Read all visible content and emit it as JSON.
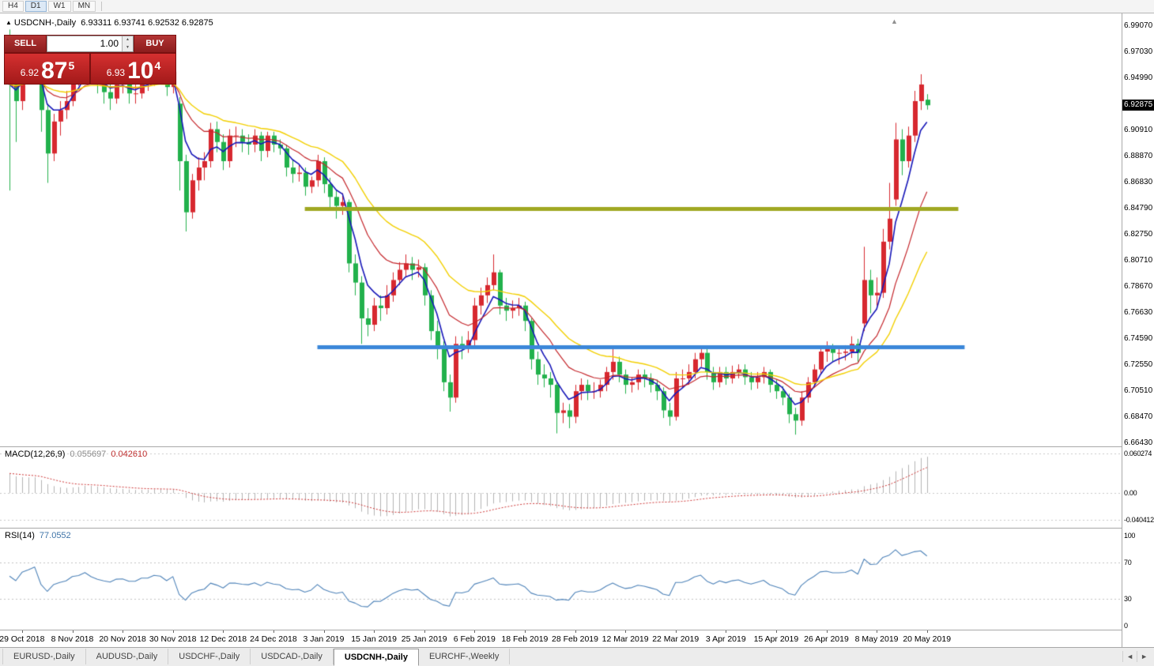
{
  "toolbar": {
    "timeframes": [
      {
        "label": "H4",
        "active": false
      },
      {
        "label": "D1",
        "active": true
      },
      {
        "label": "W1",
        "active": false
      },
      {
        "label": "MN",
        "active": false
      }
    ]
  },
  "chart": {
    "header": {
      "symbol": "USDCNH-,Daily",
      "ohlc": "6.93311 6.93741 6.92532 6.92875"
    }
  },
  "trade_panel": {
    "sell_label": "SELL",
    "buy_label": "BUY",
    "volume": "1.00",
    "sell": {
      "prefix": "6.92",
      "big": "87",
      "sup": "5"
    },
    "buy": {
      "prefix": "6.93",
      "big": "10",
      "sup": "4"
    }
  },
  "price_scale": {
    "labels": [
      "6.99070",
      "6.97030",
      "6.94990",
      "6.92950",
      "6.90910",
      "6.88870",
      "6.86830",
      "6.84790",
      "6.82750",
      "6.80710",
      "6.78670",
      "6.76630",
      "6.74590",
      "6.72550",
      "6.70510",
      "6.68470",
      "6.66430"
    ],
    "current": "6.92875"
  },
  "macd_panel": {
    "name": "MACD(12,26,9)",
    "value_main": "0.055697",
    "value_signal": "0.042610",
    "scale": [
      "0.060274",
      "0.00",
      "-0.040412"
    ]
  },
  "rsi_panel": {
    "name": "RSI(14)",
    "value": "77.0552",
    "scale": [
      "100",
      "70",
      "30",
      "0"
    ],
    "levels": [
      70,
      30
    ]
  },
  "time_axis": {
    "labels": [
      "29 Oct 2018",
      "8 Nov 2018",
      "20 Nov 2018",
      "30 Nov 2018",
      "12 Dec 2018",
      "24 Dec 2018",
      "3 Jan 2019",
      "15 Jan 2019",
      "25 Jan 2019",
      "6 Feb 2019",
      "18 Feb 2019",
      "28 Feb 2019",
      "12 Mar 2019",
      "22 Mar 2019",
      "3 Apr 2019",
      "15 Apr 2019",
      "26 Apr 2019",
      "8 May 2019",
      "20 May 2019"
    ],
    "tick_every": 8,
    "first_label_bar": 2
  },
  "tabs": {
    "items": [
      {
        "label": "EURUSD-,Daily",
        "active": false
      },
      {
        "label": "AUDUSD-,Daily",
        "active": false
      },
      {
        "label": "USDCHF-,Daily",
        "active": false
      },
      {
        "label": "USDCAD-,Daily",
        "active": false
      },
      {
        "label": "USDCNH-,Daily",
        "active": true
      },
      {
        "label": "EURCHF-,Weekly",
        "active": false
      }
    ]
  },
  "icons": {
    "title_marker": "▲",
    "spinner_up": "▲",
    "spinner_down": "▼",
    "tab_prev": "◄",
    "tab_next": "►",
    "shift_marker": "▲"
  },
  "chart_data": {
    "type": "candlestick+indicators",
    "symbol": "USDCNH-",
    "timeframe": "Daily",
    "last_price": 6.92875,
    "colors": {
      "up": "#d7282f",
      "down": "#22b14c",
      "ma_fast": "#1717b8",
      "ma_mid": "#c4262b",
      "ma_slow": "#f2cf00",
      "macd_hist": "#b2b2b2",
      "macd_signal": "#cc3333",
      "rsi": "#4d82b8",
      "hline_upper": "#a0a822",
      "hline_lower": "#3b87d9"
    },
    "ma": [
      {
        "period": 5,
        "color": "#1717b8",
        "width": 1.6
      },
      {
        "period": 13,
        "color": "#c4262b",
        "width": 1.2
      },
      {
        "period": 25,
        "color": "#f2cf00",
        "width": 1.4
      }
    ],
    "hlines": [
      {
        "price": 6.8478,
        "color": "#a0a822",
        "width": 5,
        "from_bar": 47,
        "to_bar": 151
      },
      {
        "price": 6.74,
        "color": "#3b87d9",
        "width": 5,
        "from_bar": 49,
        "to_bar": 152
      }
    ],
    "macd": {
      "fast": 12,
      "slow": 26,
      "signal": 9,
      "init_fast": 6.952,
      "init_slow": 6.92,
      "init_signal": 0.03,
      "current_main": 0.055697,
      "current_signal": 0.04261
    },
    "rsi": {
      "period": 14,
      "current": 77.0552
    },
    "candles": [
      [
        6.968,
        6.988,
        6.862,
        6.945
      ],
      [
        6.945,
        6.958,
        6.9,
        6.932
      ],
      [
        6.932,
        6.962,
        6.925,
        6.957
      ],
      [
        6.957,
        6.972,
        6.95,
        6.966
      ],
      [
        6.966,
        6.98,
        6.958,
        6.977
      ],
      [
        6.977,
        6.979,
        6.908,
        6.925
      ],
      [
        6.925,
        6.93,
        6.868,
        6.891
      ],
      [
        6.891,
        6.922,
        6.885,
        6.916
      ],
      [
        6.916,
        6.932,
        6.905,
        6.925
      ],
      [
        6.925,
        6.94,
        6.918,
        6.932
      ],
      [
        6.932,
        6.956,
        6.928,
        6.951
      ],
      [
        6.951,
        6.962,
        6.944,
        6.956
      ],
      [
        6.956,
        6.974,
        6.95,
        6.97
      ],
      [
        6.97,
        6.977,
        6.948,
        6.955
      ],
      [
        6.955,
        6.96,
        6.938,
        6.945
      ],
      [
        6.945,
        6.952,
        6.93,
        6.939
      ],
      [
        6.939,
        6.946,
        6.925,
        6.934
      ],
      [
        6.934,
        6.95,
        6.93,
        6.945
      ],
      [
        6.945,
        6.953,
        6.938,
        6.946
      ],
      [
        6.946,
        6.95,
        6.93,
        6.938
      ],
      [
        6.938,
        6.945,
        6.93,
        6.938
      ],
      [
        6.938,
        6.952,
        6.934,
        6.948
      ],
      [
        6.948,
        6.955,
        6.94,
        6.948
      ],
      [
        6.948,
        6.962,
        6.944,
        6.957
      ],
      [
        6.957,
        6.963,
        6.948,
        6.955
      ],
      [
        6.955,
        6.958,
        6.936,
        6.943
      ],
      [
        6.943,
        6.96,
        6.938,
        6.955
      ],
      [
        6.93,
        6.935,
        6.862,
        6.885
      ],
      [
        6.885,
        6.89,
        6.83,
        6.845
      ],
      [
        6.845,
        6.875,
        6.84,
        6.87
      ],
      [
        6.87,
        6.888,
        6.862,
        6.88
      ],
      [
        6.88,
        6.892,
        6.87,
        6.885
      ],
      [
        6.885,
        6.915,
        6.88,
        6.91
      ],
      [
        6.91,
        6.916,
        6.892,
        6.9
      ],
      [
        6.9,
        6.906,
        6.878,
        6.885
      ],
      [
        6.885,
        6.91,
        6.88,
        6.905
      ],
      [
        6.905,
        6.912,
        6.896,
        6.905
      ],
      [
        6.905,
        6.91,
        6.892,
        6.9
      ],
      [
        6.9,
        6.906,
        6.89,
        6.898
      ],
      [
        6.898,
        6.91,
        6.892,
        6.905
      ],
      [
        6.905,
        6.908,
        6.885,
        6.893
      ],
      [
        6.893,
        6.908,
        6.888,
        6.905
      ],
      [
        6.905,
        6.908,
        6.892,
        6.898
      ],
      [
        6.898,
        6.902,
        6.89,
        6.895
      ],
      [
        6.895,
        6.898,
        6.873,
        6.88
      ],
      [
        6.88,
        6.886,
        6.868,
        6.875
      ],
      [
        6.875,
        6.882,
        6.869,
        6.876
      ],
      [
        6.876,
        6.88,
        6.858,
        6.865
      ],
      [
        6.865,
        6.873,
        6.86,
        6.87
      ],
      [
        6.87,
        6.89,
        6.865,
        6.885
      ],
      [
        6.885,
        6.888,
        6.86,
        6.867
      ],
      [
        6.867,
        6.872,
        6.848,
        6.857
      ],
      [
        6.857,
        6.862,
        6.84,
        6.85
      ],
      [
        6.85,
        6.86,
        6.843,
        6.853
      ],
      [
        6.853,
        6.855,
        6.798,
        6.805
      ],
      [
        6.805,
        6.812,
        6.78,
        6.79
      ],
      [
        6.79,
        6.795,
        6.742,
        6.762
      ],
      [
        6.762,
        6.77,
        6.748,
        6.757
      ],
      [
        6.757,
        6.778,
        6.752,
        6.772
      ],
      [
        6.772,
        6.78,
        6.76,
        6.77
      ],
      [
        6.77,
        6.788,
        6.765,
        6.78
      ],
      [
        6.78,
        6.798,
        6.775,
        6.792
      ],
      [
        6.792,
        6.806,
        6.788,
        6.8
      ],
      [
        6.8,
        6.812,
        6.794,
        6.805
      ],
      [
        6.805,
        6.81,
        6.792,
        6.8
      ],
      [
        6.8,
        6.808,
        6.794,
        6.802
      ],
      [
        6.802,
        6.805,
        6.772,
        6.78
      ],
      [
        6.78,
        6.784,
        6.745,
        6.752
      ],
      [
        6.752,
        6.76,
        6.73,
        6.74
      ],
      [
        6.74,
        6.744,
        6.705,
        6.712
      ],
      [
        6.712,
        6.718,
        6.689,
        6.7
      ],
      [
        6.7,
        6.748,
        6.696,
        6.742
      ],
      [
        6.742,
        6.748,
        6.73,
        6.74
      ],
      [
        6.74,
        6.752,
        6.735,
        6.745
      ],
      [
        6.745,
        6.778,
        6.74,
        6.772
      ],
      [
        6.772,
        6.786,
        6.765,
        6.78
      ],
      [
        6.78,
        6.794,
        6.774,
        6.788
      ],
      [
        6.788,
        6.812,
        6.784,
        6.798
      ],
      [
        6.798,
        6.8,
        6.765,
        6.772
      ],
      [
        6.772,
        6.778,
        6.76,
        6.768
      ],
      [
        6.768,
        6.776,
        6.762,
        6.77
      ],
      [
        6.77,
        6.778,
        6.764,
        6.772
      ],
      [
        6.772,
        6.775,
        6.752,
        6.76
      ],
      [
        6.76,
        6.762,
        6.722,
        6.73
      ],
      [
        6.73,
        6.736,
        6.71,
        6.718
      ],
      [
        6.718,
        6.726,
        6.708,
        6.715
      ],
      [
        6.715,
        6.72,
        6.7,
        6.71
      ],
      [
        6.71,
        6.712,
        6.672,
        6.688
      ],
      [
        6.688,
        6.696,
        6.68,
        6.69
      ],
      [
        6.69,
        6.695,
        6.676,
        6.685
      ],
      [
        6.685,
        6.71,
        6.68,
        6.705
      ],
      [
        6.705,
        6.715,
        6.698,
        6.71
      ],
      [
        6.71,
        6.714,
        6.698,
        6.705
      ],
      [
        6.705,
        6.712,
        6.699,
        6.705
      ],
      [
        6.705,
        6.714,
        6.7,
        6.71
      ],
      [
        6.71,
        6.724,
        6.705,
        6.72
      ],
      [
        6.72,
        6.74,
        6.714,
        6.728
      ],
      [
        6.728,
        6.732,
        6.712,
        6.718
      ],
      [
        6.718,
        6.722,
        6.703,
        6.71
      ],
      [
        6.71,
        6.716,
        6.704,
        6.712
      ],
      [
        6.712,
        6.722,
        6.706,
        6.718
      ],
      [
        6.718,
        6.722,
        6.708,
        6.715
      ],
      [
        6.715,
        6.719,
        6.704,
        6.71
      ],
      [
        6.71,
        6.714,
        6.698,
        6.705
      ],
      [
        6.705,
        6.708,
        6.684,
        6.69
      ],
      [
        6.69,
        6.696,
        6.678,
        6.685
      ],
      [
        6.685,
        6.72,
        6.682,
        6.715
      ],
      [
        6.715,
        6.722,
        6.708,
        6.715
      ],
      [
        6.715,
        6.726,
        6.71,
        6.72
      ],
      [
        6.72,
        6.735,
        6.715,
        6.73
      ],
      [
        6.73,
        6.74,
        6.724,
        6.735
      ],
      [
        6.735,
        6.738,
        6.714,
        6.72
      ],
      [
        6.72,
        6.724,
        6.706,
        6.712
      ],
      [
        6.712,
        6.724,
        6.708,
        6.72
      ],
      [
        6.72,
        6.724,
        6.71,
        6.715
      ],
      [
        6.715,
        6.725,
        6.711,
        6.72
      ],
      [
        6.72,
        6.726,
        6.715,
        6.722
      ],
      [
        6.722,
        6.726,
        6.71,
        6.716
      ],
      [
        6.716,
        6.72,
        6.706,
        6.712
      ],
      [
        6.712,
        6.72,
        6.707,
        6.716
      ],
      [
        6.716,
        6.724,
        6.711,
        6.72
      ],
      [
        6.72,
        6.722,
        6.704,
        6.71
      ],
      [
        6.71,
        6.714,
        6.699,
        6.705
      ],
      [
        6.705,
        6.709,
        6.694,
        6.7
      ],
      [
        6.7,
        6.703,
        6.68,
        6.687
      ],
      [
        6.687,
        6.692,
        6.671,
        6.682
      ],
      [
        6.682,
        6.705,
        6.678,
        6.7
      ],
      [
        6.7,
        6.716,
        6.696,
        6.712
      ],
      [
        6.712,
        6.726,
        6.708,
        6.722
      ],
      [
        6.722,
        6.74,
        6.718,
        6.736
      ],
      [
        6.736,
        6.744,
        6.728,
        6.738
      ],
      [
        6.738,
        6.742,
        6.728,
        6.735
      ],
      [
        6.735,
        6.74,
        6.726,
        6.735
      ],
      [
        6.735,
        6.741,
        6.729,
        6.736
      ],
      [
        6.736,
        6.748,
        6.731,
        6.742
      ],
      [
        6.742,
        6.746,
        6.728,
        6.735
      ],
      [
        6.758,
        6.818,
        6.752,
        6.792
      ],
      [
        6.792,
        6.8,
        6.766,
        6.78
      ],
      [
        6.78,
        6.794,
        6.772,
        6.782
      ],
      [
        6.782,
        6.832,
        6.778,
        6.822
      ],
      [
        6.822,
        6.868,
        6.816,
        6.84
      ],
      [
        6.855,
        6.915,
        6.85,
        6.902
      ],
      [
        6.902,
        6.91,
        6.874,
        6.885
      ],
      [
        6.885,
        6.912,
        6.88,
        6.905
      ],
      [
        6.905,
        6.94,
        6.9,
        6.932
      ],
      [
        6.932,
        6.953,
        6.925,
        6.945
      ],
      [
        6.93311,
        6.93741,
        6.92532,
        6.92875
      ]
    ]
  }
}
